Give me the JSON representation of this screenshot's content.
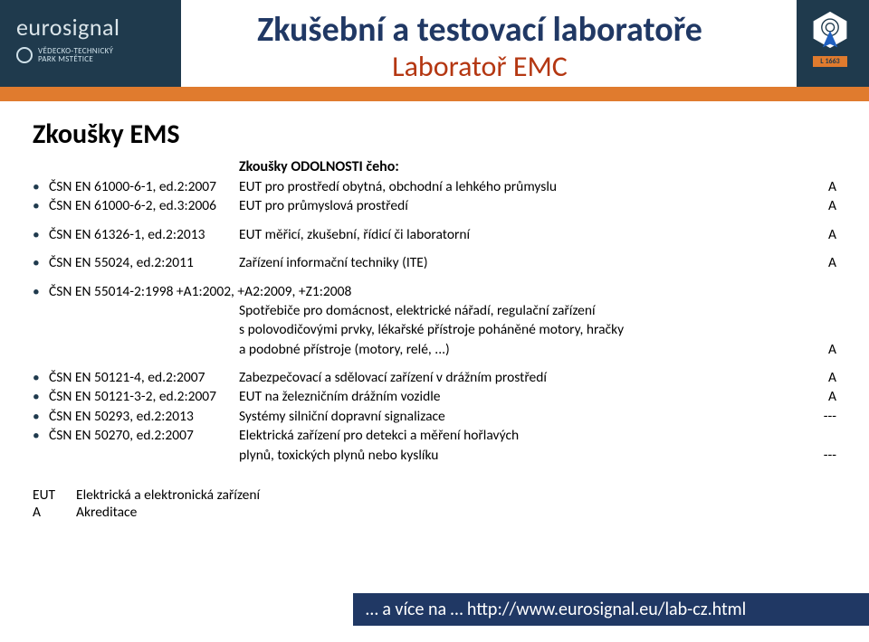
{
  "brand": {
    "name": "eurosignal",
    "park_line1": "VĚDECKO-TECHNICKÝ",
    "park_line2": "PARK MSTĚTICE"
  },
  "title": {
    "main": "Zkušební a testovací laboratoře",
    "sub": "Laboratoř EMC"
  },
  "accreditation": {
    "number": "L 1663"
  },
  "section_heading": "Zkoušky EMS",
  "sub_heading": "Zkoušky ODOLNOSTI čeho:",
  "rows": [
    {
      "std": "ČSN EN 61000-6-1, ed.2:2007",
      "desc": "EUT pro prostředí obytná, obchodní a lehkého průmyslu",
      "flag": "A"
    },
    {
      "std": "ČSN EN 61000-6-2, ed.3:2006",
      "desc": "EUT pro průmyslová prostředí",
      "flag": "A"
    },
    {
      "__gap": true
    },
    {
      "std": "ČSN EN 61326-1, ed.2:2013",
      "desc": "EUT měřicí, zkušební, řídicí či laboratorní",
      "flag": "A"
    },
    {
      "__gap": true
    },
    {
      "std": "ČSN EN 55024, ed.2:2011",
      "desc": "Zařízení informační techniky (ITE)",
      "flag": "A"
    },
    {
      "__gap": true
    },
    {
      "std": "ČSN EN 55014-2:1998 +A1:2002, +A2:2009, +Z1:2008",
      "desc": "",
      "flag": "",
      "__wide": true
    },
    {
      "std": "",
      "desc": "Spotřebiče pro domácnost, elektrické nářadí, regulační zařízení",
      "flag": ""
    },
    {
      "std": "",
      "desc": "s polovodičovými prvky, lékařské přístroje poháněné motory, hračky",
      "flag": ""
    },
    {
      "std": "",
      "desc": "a podobné přístroje (motory, relé, ...)",
      "flag": "A"
    },
    {
      "__gap": true
    },
    {
      "std": "ČSN EN 50121-4, ed.2:2007",
      "desc": "Zabezpečovací a sdělovací zařízení v drážním  prostředí",
      "flag": "A"
    },
    {
      "std": "ČSN EN 50121-3-2, ed.2:2007",
      "desc": "EUT na železničním drážním vozidle",
      "flag": "A"
    },
    {
      "std": "ČSN EN 50293, ed.2:2013",
      "desc": "Systémy silniční dopravní signalizace",
      "flag": "---"
    },
    {
      "std": "ČSN EN 50270, ed.2:2007",
      "desc": "Elektrická zařízení pro detekci a měření hořlavých",
      "flag": ""
    },
    {
      "std": "",
      "desc": "plynů, toxických plynů nebo kyslíku",
      "flag": "---"
    }
  ],
  "legend": [
    {
      "key": "EUT",
      "val": "Elektrická a elektronická zařízení"
    },
    {
      "key": "A",
      "val": "Akreditace"
    }
  ],
  "footer": "… a více na … http://www.eurosignal.eu/lab-cz.html",
  "colors": {
    "band": "#1f3a4d",
    "orange": "#e07b2e",
    "title_main": "#203864",
    "title_sub": "#b43712",
    "footer_bg": "#203864"
  }
}
